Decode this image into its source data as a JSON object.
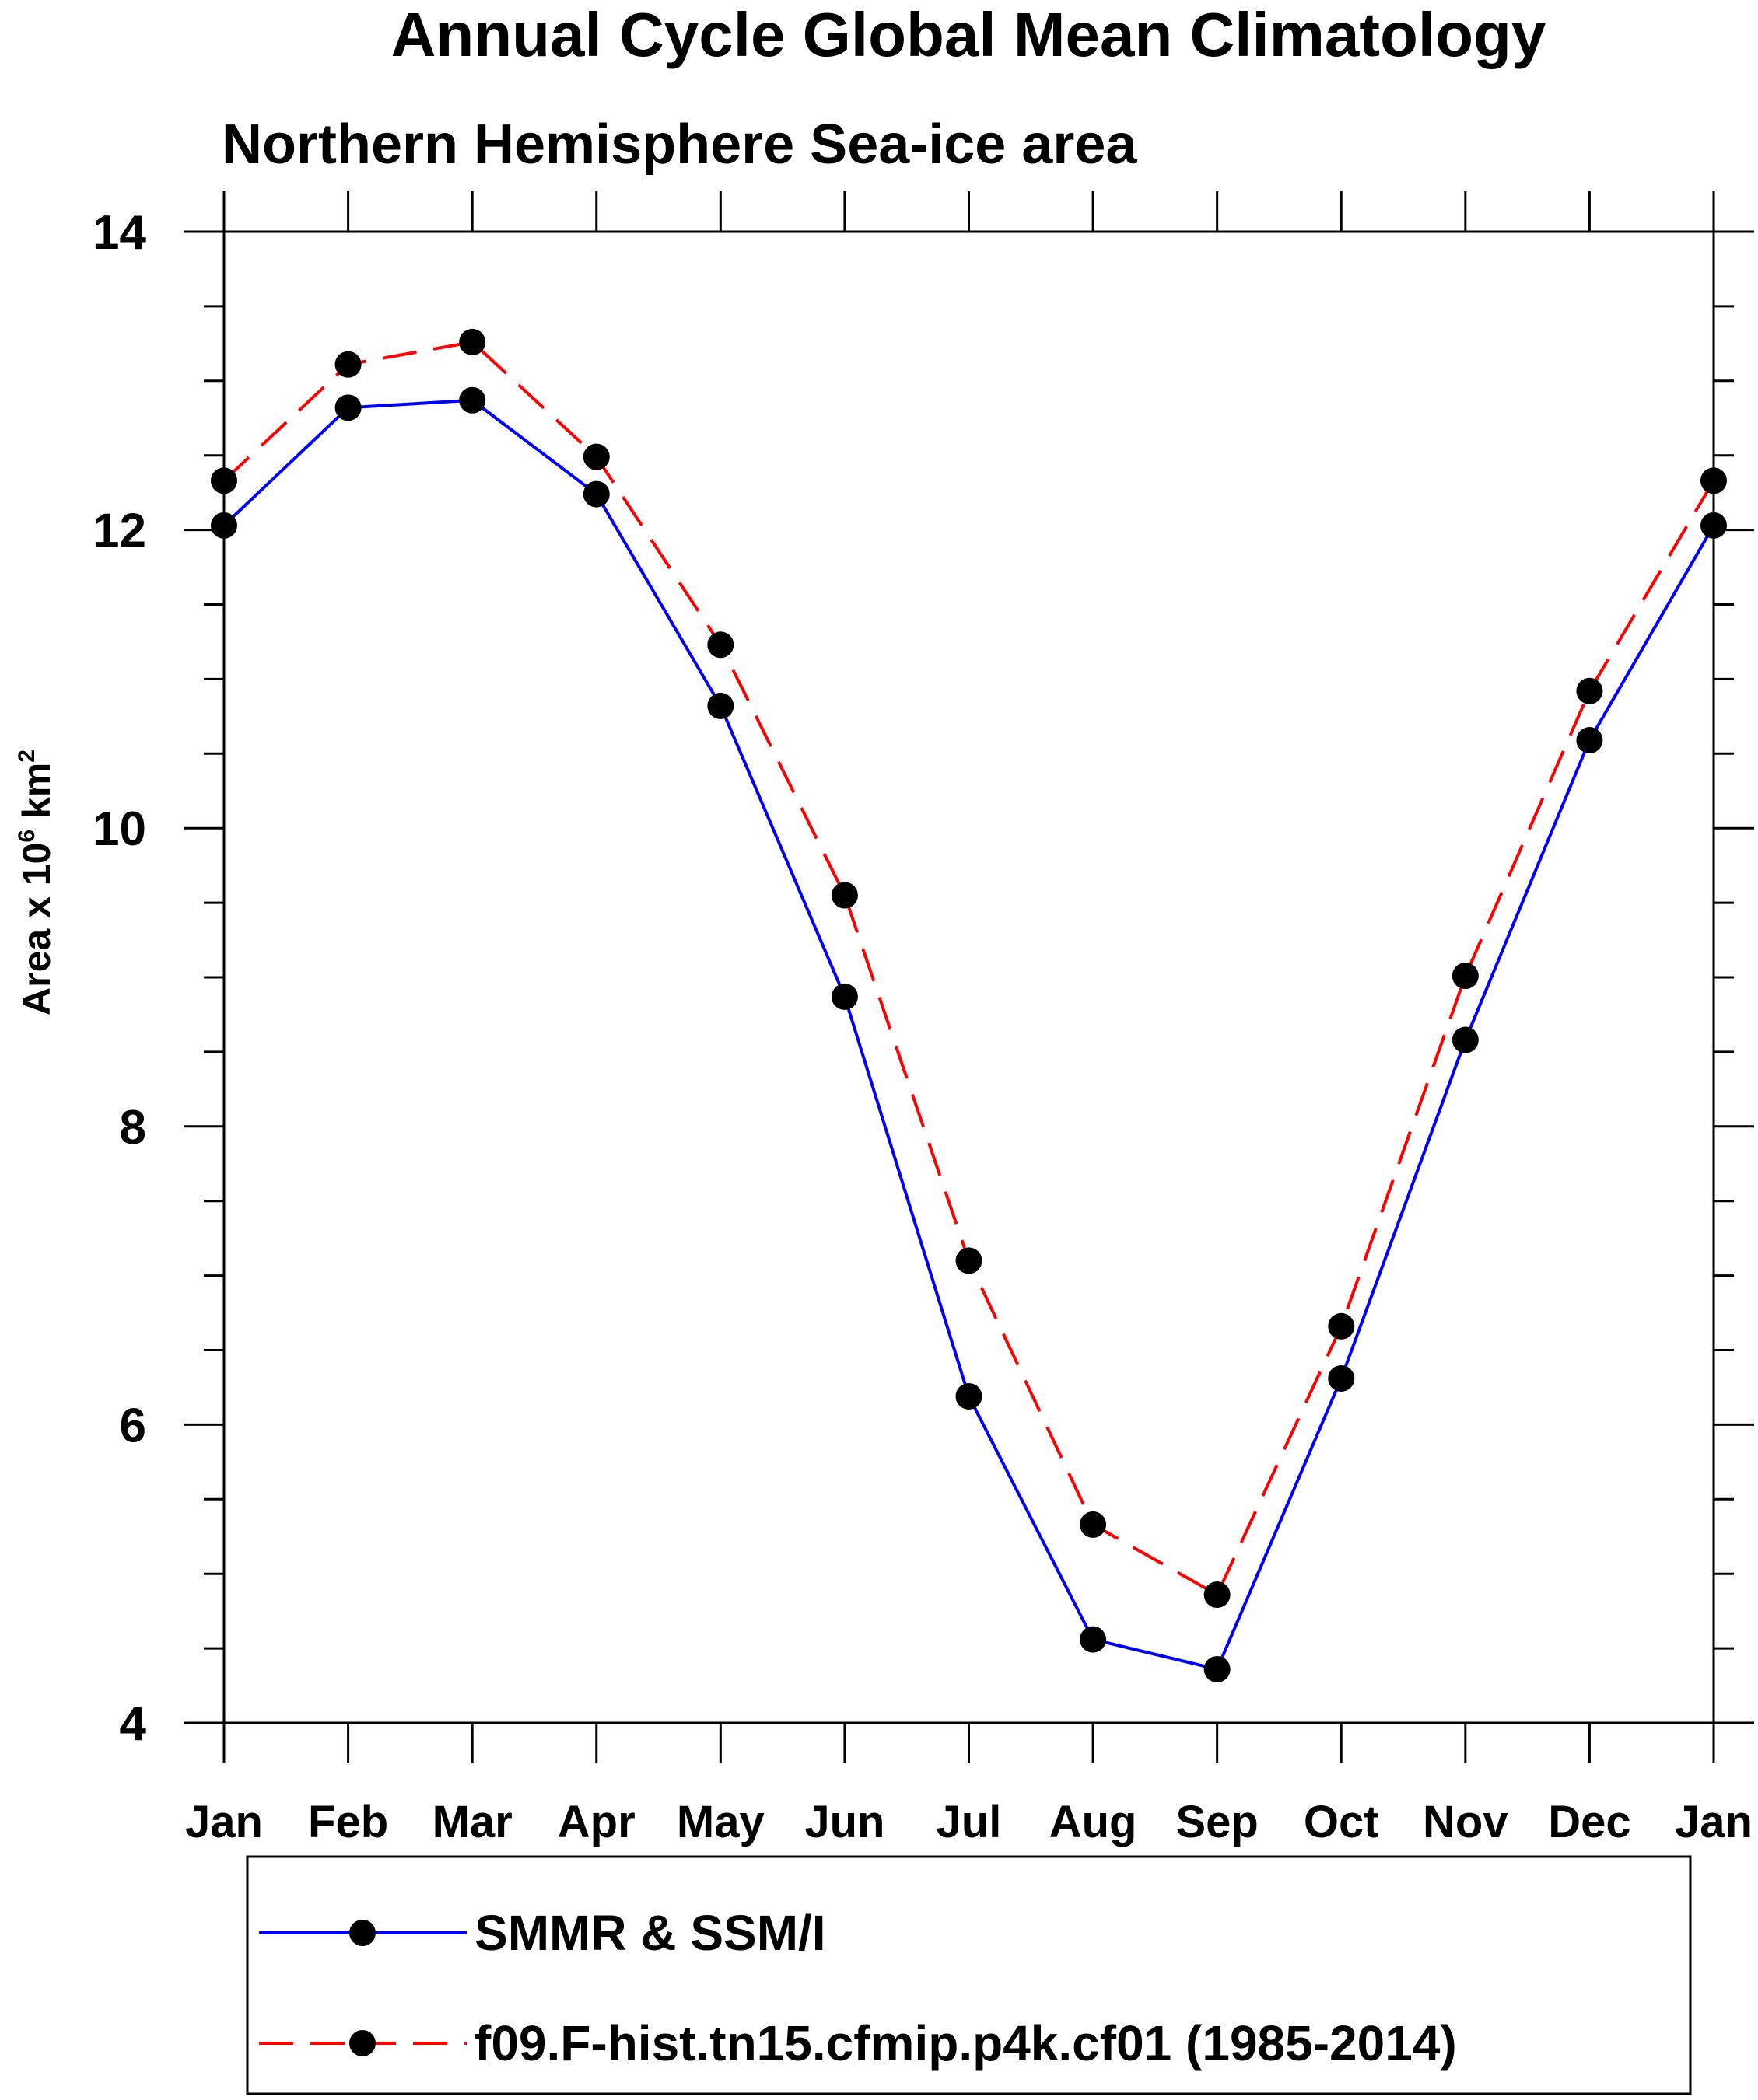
{
  "chart_data": {
    "type": "line",
    "title": "Annual Cycle Global Mean Climatology",
    "subtitle": "Northern Hemisphere Sea-ice area",
    "ylabel_main": "Area x 10",
    "ylabel_exp": "6",
    "ylabel_unit": " km",
    "ylabel_unit_exp": "2",
    "xlabel": "",
    "ylim": [
      4,
      14
    ],
    "y_major_ticks": [
      4,
      6,
      8,
      10,
      12,
      14
    ],
    "y_minor_step": 0.5,
    "categories": [
      "Jan",
      "Feb",
      "Mar",
      "Apr",
      "May",
      "Jun",
      "Jul",
      "Aug",
      "Sep",
      "Oct",
      "Nov",
      "Dec",
      "Jan"
    ],
    "series": [
      {
        "name": "SMMR & SSM/I",
        "color": "#0000ff",
        "dash": "solid",
        "marker": "filled-circle",
        "values": [
          12.03,
          12.82,
          12.87,
          12.24,
          10.82,
          8.87,
          6.19,
          4.56,
          4.36,
          6.31,
          8.58,
          10.59,
          12.03
        ]
      },
      {
        "name": "f09.F-hist.tn15.cfmip.p4k.cf01 (1985-2014)",
        "color": "#ff0000",
        "dash": "dashed",
        "marker": "filled-circle",
        "values": [
          12.33,
          13.11,
          13.26,
          12.49,
          11.23,
          9.55,
          7.1,
          5.33,
          4.86,
          6.66,
          9.01,
          10.92,
          12.33
        ]
      }
    ],
    "legend_position": "bottom",
    "grid": false
  }
}
